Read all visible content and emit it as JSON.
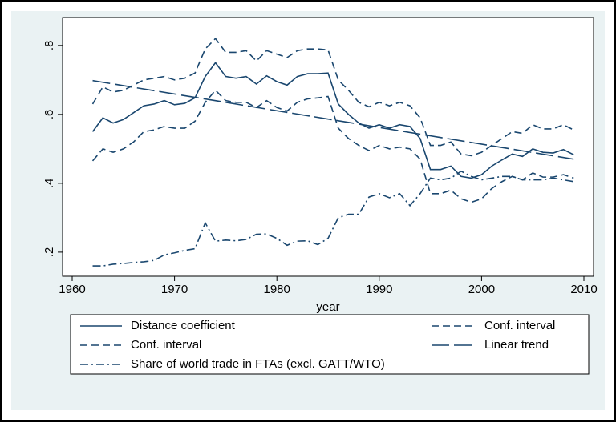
{
  "chart_data": {
    "type": "line",
    "x": [
      1962,
      1963,
      1964,
      1965,
      1966,
      1967,
      1968,
      1969,
      1970,
      1971,
      1972,
      1973,
      1974,
      1975,
      1976,
      1977,
      1978,
      1979,
      1980,
      1981,
      1982,
      1983,
      1984,
      1985,
      1986,
      1987,
      1988,
      1989,
      1990,
      1991,
      1992,
      1993,
      1994,
      1995,
      1996,
      1997,
      1998,
      1999,
      2000,
      2001,
      2002,
      2003,
      2004,
      2005,
      2006,
      2007,
      2008,
      2009
    ],
    "xlabel": "year",
    "xlim": [
      1959.06,
      2010.94
    ],
    "xticks": [
      1960,
      1970,
      1980,
      1990,
      2000,
      2010
    ],
    "ylim": [
      0.13,
      0.881
    ],
    "yticks": [
      {
        "value": 0.2,
        "label": ".2"
      },
      {
        "value": 0.4,
        "label": ".4"
      },
      {
        "value": 0.6,
        "label": ".6"
      },
      {
        "value": 0.8,
        "label": ".8"
      }
    ],
    "series": [
      {
        "name": "Distance coefficient",
        "color": "#1a476f",
        "dash": "solid",
        "values": [
          0.55,
          0.59,
          0.575,
          0.585,
          0.605,
          0.625,
          0.63,
          0.64,
          0.628,
          0.632,
          0.648,
          0.71,
          0.75,
          0.71,
          0.705,
          0.71,
          0.688,
          0.712,
          0.695,
          0.685,
          0.71,
          0.718,
          0.718,
          0.72,
          0.63,
          0.6,
          0.575,
          0.56,
          0.57,
          0.56,
          0.57,
          0.565,
          0.53,
          0.44,
          0.44,
          0.45,
          0.42,
          0.415,
          0.425,
          0.45,
          0.468,
          0.485,
          0.478,
          0.5,
          0.49,
          0.488,
          0.498,
          0.483
        ]
      },
      {
        "name": "Conf. interval",
        "color": "#1a476f",
        "dash": "dashed",
        "values": [
          0.63,
          0.68,
          0.665,
          0.67,
          0.685,
          0.7,
          0.705,
          0.71,
          0.7,
          0.705,
          0.72,
          0.79,
          0.82,
          0.78,
          0.78,
          0.785,
          0.755,
          0.785,
          0.775,
          0.765,
          0.785,
          0.79,
          0.79,
          0.787,
          0.7,
          0.67,
          0.635,
          0.622,
          0.635,
          0.625,
          0.635,
          0.625,
          0.59,
          0.51,
          0.51,
          0.52,
          0.485,
          0.48,
          0.49,
          0.51,
          0.53,
          0.55,
          0.545,
          0.57,
          0.558,
          0.558,
          0.57,
          0.555
        ]
      },
      {
        "name": "Conf. interval",
        "color": "#1a476f",
        "dash": "dashed",
        "values": [
          0.465,
          0.5,
          0.49,
          0.5,
          0.52,
          0.55,
          0.555,
          0.565,
          0.56,
          0.56,
          0.58,
          0.635,
          0.67,
          0.64,
          0.635,
          0.635,
          0.62,
          0.64,
          0.62,
          0.61,
          0.635,
          0.645,
          0.648,
          0.652,
          0.56,
          0.53,
          0.51,
          0.495,
          0.51,
          0.5,
          0.505,
          0.5,
          0.47,
          0.37,
          0.37,
          0.38,
          0.355,
          0.345,
          0.355,
          0.385,
          0.405,
          0.42,
          0.41,
          0.43,
          0.418,
          0.418,
          0.425,
          0.415
        ]
      },
      {
        "name": "Linear trend",
        "color": "#1a476f",
        "dash": "longdash",
        "x": [
          1962,
          2009
        ],
        "values": [
          0.698,
          0.47
        ]
      },
      {
        "name": "Share of world trade in FTAs (excl. GATT/WTO)",
        "color": "#1a476f",
        "dash": "dashdot",
        "values": [
          0.16,
          0.16,
          0.165,
          0.167,
          0.17,
          0.172,
          0.176,
          0.192,
          0.198,
          0.205,
          0.21,
          0.285,
          0.232,
          0.235,
          0.233,
          0.237,
          0.252,
          0.253,
          0.24,
          0.22,
          0.232,
          0.233,
          0.222,
          0.24,
          0.3,
          0.31,
          0.31,
          0.36,
          0.37,
          0.358,
          0.37,
          0.335,
          0.37,
          0.415,
          0.41,
          0.415,
          0.435,
          0.42,
          0.41,
          0.415,
          0.42,
          0.42,
          0.41,
          0.41,
          0.41,
          0.415,
          0.41,
          0.405
        ]
      }
    ]
  }
}
